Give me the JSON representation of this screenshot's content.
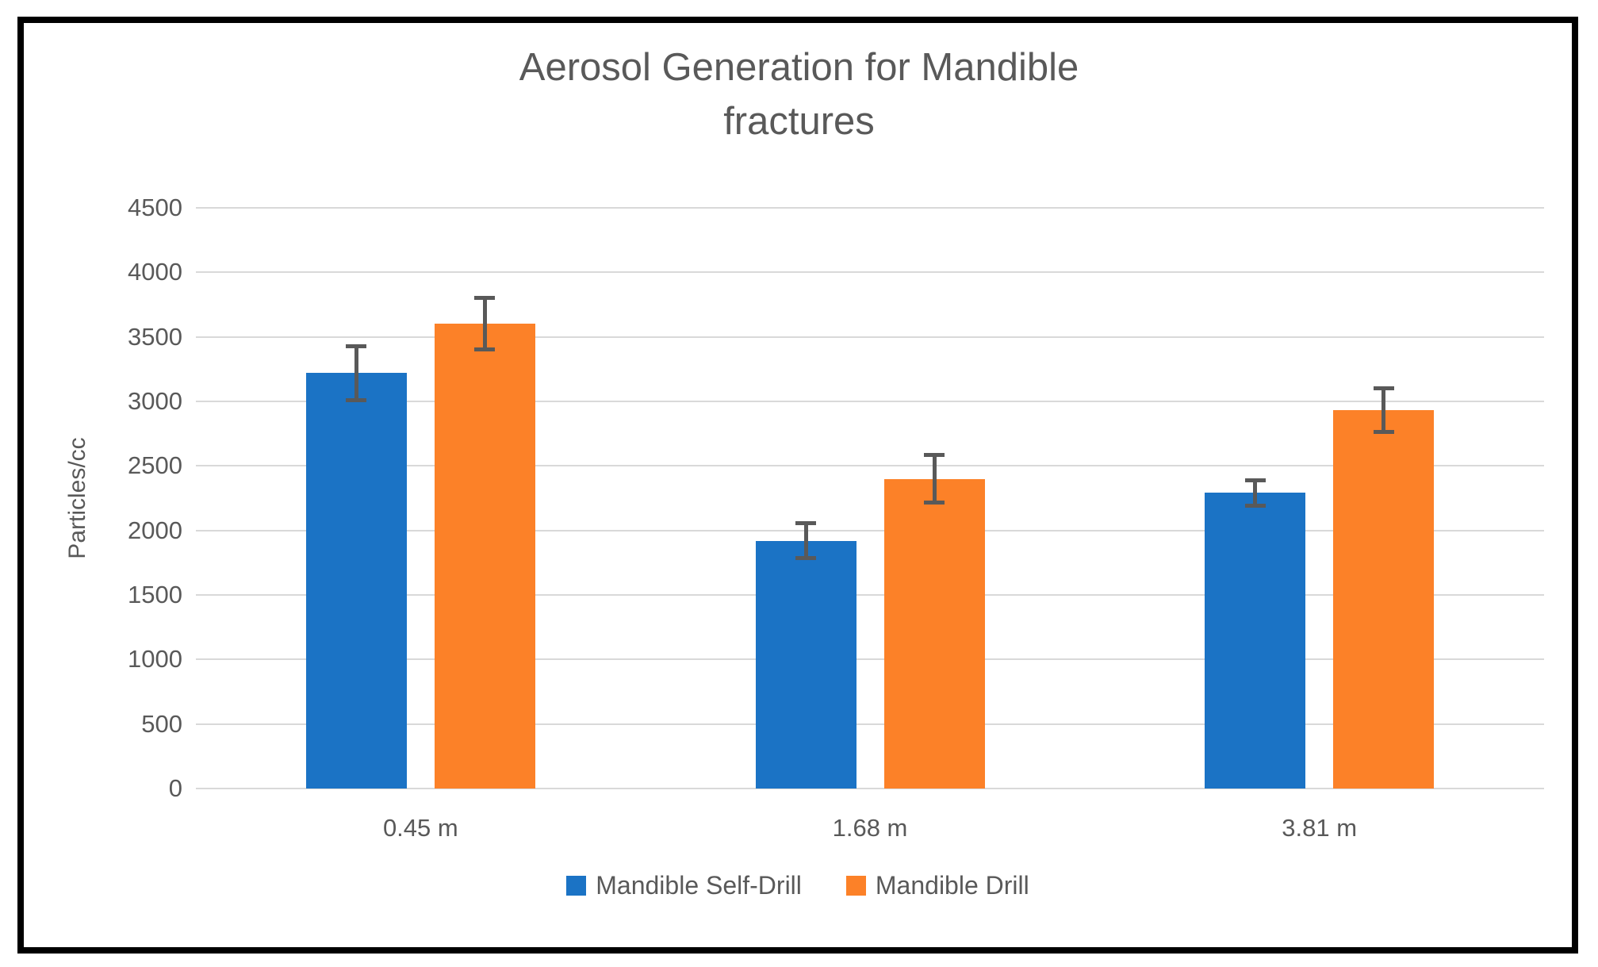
{
  "chart_data": {
    "type": "bar",
    "title": "Aerosol Generation for Mandible fractures",
    "ylabel": "Particles/cc",
    "xlabel": "",
    "categories": [
      "0.45 m",
      "1.68 m",
      "3.81 m"
    ],
    "series": [
      {
        "name": "Mandible Self-Drill",
        "color": "#1b73c5",
        "values": [
          3220,
          1920,
          2290
        ],
        "errors": [
          225,
          150,
          115
        ]
      },
      {
        "name": "Mandible Drill",
        "color": "#fc8128",
        "values": [
          3600,
          2400,
          2930
        ],
        "errors": [
          215,
          200,
          185
        ]
      }
    ],
    "ylim": [
      0,
      4500
    ],
    "ytick_step": 500,
    "yticks": [
      0,
      500,
      1000,
      1500,
      2000,
      2500,
      3000,
      3500,
      4000,
      4500
    ],
    "grid": "horizontal",
    "legend_position": "bottom",
    "error_bars": true
  },
  "colors": {
    "text": "#595959",
    "gridline": "#d9d9d9",
    "error_bar": "#595959",
    "frame_border": "#000000",
    "background": "#ffffff"
  }
}
